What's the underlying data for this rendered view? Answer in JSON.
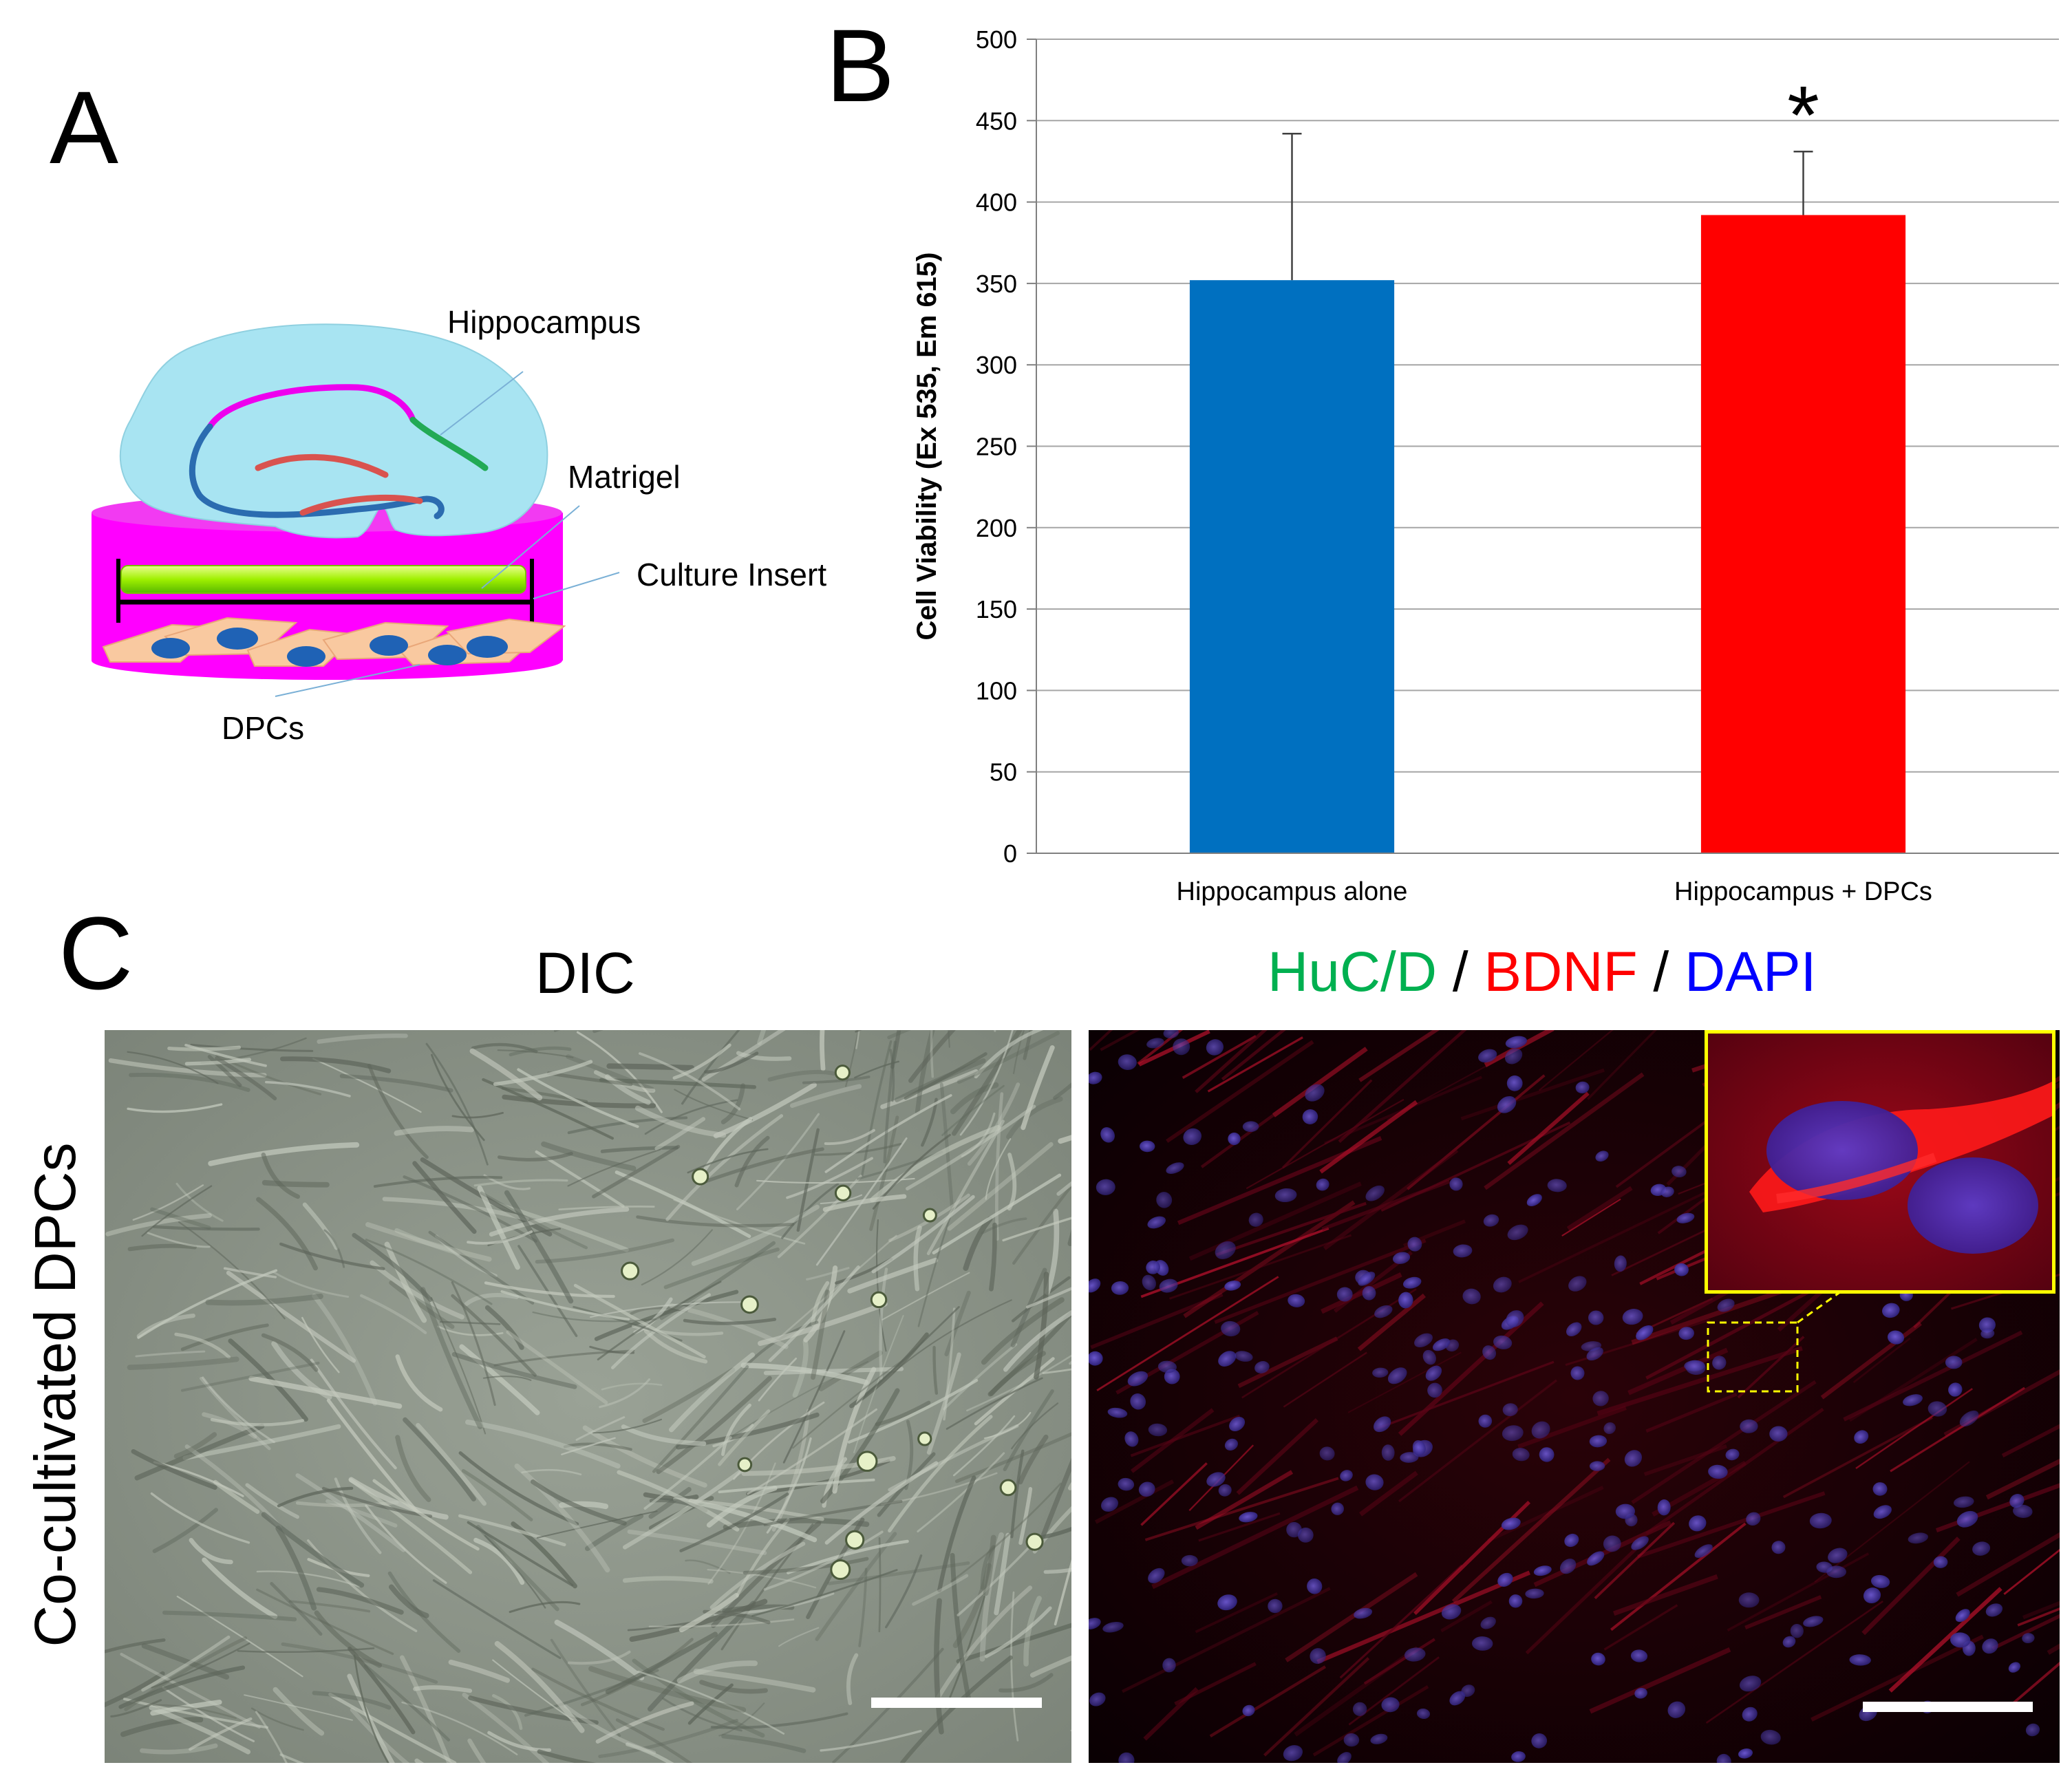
{
  "panels": {
    "a_letter": "A",
    "b_letter": "B",
    "c_letter": "C"
  },
  "diagram": {
    "labels": {
      "hippocampus": "Hippocampus",
      "matrigel": "Matrigel",
      "culture_insert": "Culture Insert",
      "dpcs": "DPCs"
    },
    "colors": {
      "tissue": "#a8e4f2",
      "insert": "#ff00ff",
      "matrigel": "#9ff000",
      "cell": "#f9c9a0",
      "nucleus": "#1f62b5",
      "line_blue": "#2b6cb0",
      "line_red": "#d9534f",
      "line_green": "#22aa55",
      "line_magenta": "#ee00ee"
    }
  },
  "chart_data": {
    "type": "bar",
    "categories": [
      "Hippocampus alone",
      "Hippocampus + DPCs"
    ],
    "values": [
      352,
      392
    ],
    "error_upper": [
      442,
      431
    ],
    "colors": [
      "#0070c0",
      "#ff0000"
    ],
    "ylabel": "Cell Viability (Ex 535,  Em 615)",
    "ylim": [
      0,
      500
    ],
    "yticks": [
      0,
      50,
      100,
      150,
      200,
      250,
      300,
      350,
      400,
      450,
      500
    ],
    "grid": true,
    "significance": [
      {
        "category_index": 1,
        "symbol": "*"
      }
    ]
  },
  "panel_c": {
    "row_label": "Co-cultivated DPCs",
    "dic_title": "DIC",
    "stain_title": {
      "huc": "HuC/D",
      "sep1": " / ",
      "bdnf": "BDNF",
      "sep2": " / ",
      "dapi": "DAPI"
    },
    "colors": {
      "huc": "#00b050",
      "bdnf": "#ff0000",
      "dapi": "#0000ff",
      "inset_border": "#ffff00"
    }
  }
}
